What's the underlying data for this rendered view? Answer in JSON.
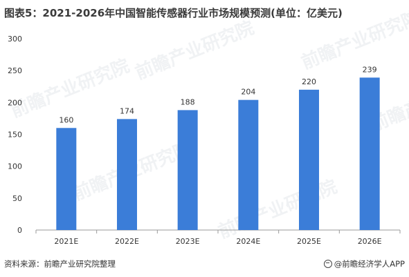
{
  "page": {
    "title": "图表5：2021-2026年中国智能传感器行业市场规模预测(单位：亿美元)",
    "source": "资料来源：前瞻产业研究院整理",
    "brand": "@前瞻经济学人APP",
    "watermark": "前瞻产业研究院"
  },
  "colors": {
    "bar": "#3b7dd8",
    "axis": "#999999",
    "text": "#333333"
  },
  "chart_data": {
    "type": "bar",
    "title": "图表5：2021-2026年中国智能传感器行业市场规模预测(单位：亿美元)",
    "categories": [
      "2021E",
      "2022E",
      "2023E",
      "2024E",
      "2025E",
      "2026E"
    ],
    "values": [
      160,
      174,
      188,
      204,
      220,
      239
    ],
    "xlabel": "",
    "ylabel": "",
    "ylim": [
      0,
      300
    ],
    "yticks": [
      0,
      50,
      100,
      150,
      200,
      250,
      300
    ],
    "grid": false,
    "legend": "none",
    "data_labels": true
  }
}
